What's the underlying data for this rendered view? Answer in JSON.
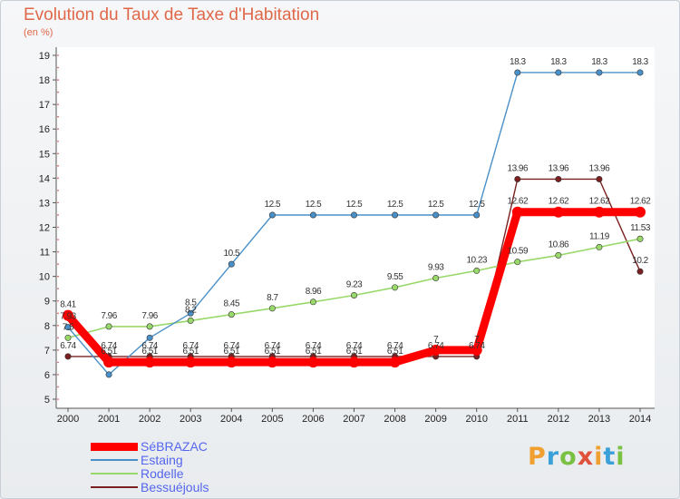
{
  "header": {
    "title": "Evolution du Taux de Taxe d'Habitation",
    "unit": "(en %)"
  },
  "brand": {
    "letters": [
      "P",
      "r",
      "o",
      "x",
      "i",
      "t",
      "i"
    ],
    "colors": [
      "#f0a030",
      "#3aa0d8",
      "#7ac143",
      "#e0503a",
      "#f0a030",
      "#3aa0d8",
      "#7ac143"
    ]
  },
  "chart_data": {
    "type": "line",
    "title": "Evolution du Taux de Taxe d'Habitation",
    "ylabel": "(en %)",
    "x": [
      "2000",
      "2001",
      "2002",
      "2003",
      "2004",
      "2005",
      "2006",
      "2007",
      "2008",
      "2009",
      "2010",
      "2011",
      "2012",
      "2013",
      "2014"
    ],
    "ylim": [
      5,
      19
    ],
    "yticks": [
      5,
      6,
      7,
      8,
      9,
      10,
      11,
      12,
      13,
      14,
      15,
      16,
      17,
      18,
      19
    ],
    "grid": false,
    "legend": "bottom-left",
    "series": [
      {
        "name": "SéBRAZAC",
        "color": "#ff0000",
        "values": [
          8.41,
          6.51,
          6.51,
          6.51,
          6.51,
          6.51,
          6.51,
          6.51,
          6.51,
          7.0,
          7.0,
          12.62,
          12.62,
          12.62,
          12.62
        ],
        "labels": [
          "8.41",
          "6.51",
          "6.51",
          "6.51",
          "6.51",
          "6.51",
          "6.51",
          "6.51",
          "6.51",
          "7",
          "7",
          "12.62",
          "12.62",
          "12.62",
          "12.62"
        ]
      },
      {
        "name": "Estaing",
        "color": "#4a90c8",
        "values": [
          7.93,
          6.0,
          7.5,
          8.5,
          10.5,
          12.5,
          12.5,
          12.5,
          12.5,
          12.5,
          12.5,
          18.3,
          18.3,
          18.3,
          18.3
        ],
        "labels": [
          "7.93",
          "",
          "",
          "8.5",
          "10.5",
          "12.5",
          "12.5",
          "12.5",
          "12.5",
          "12.5",
          "12.5",
          "18.3",
          "18.3",
          "18.3",
          "18.3"
        ]
      },
      {
        "name": "Rodelle",
        "color": "#99d86a",
        "values": [
          7.5,
          7.96,
          7.96,
          8.2,
          8.45,
          8.7,
          8.96,
          9.23,
          9.55,
          9.93,
          10.23,
          10.59,
          10.86,
          11.19,
          11.53
        ],
        "labels": [
          "7.5",
          "7.96",
          "7.96",
          "8.2",
          "8.45",
          "8.7",
          "8.96",
          "9.23",
          "9.55",
          "9.93",
          "10.23",
          "10.59",
          "10.86",
          "11.19",
          "11.53"
        ]
      },
      {
        "name": "Bessuéjouls",
        "color": "#7a2020",
        "values": [
          6.74,
          6.74,
          6.74,
          6.74,
          6.74,
          6.74,
          6.74,
          6.74,
          6.74,
          6.74,
          6.74,
          13.96,
          13.96,
          13.96,
          10.2
        ],
        "labels": [
          "6.74",
          "6.74",
          "6.74",
          "6.74",
          "6.74",
          "6.74",
          "6.74",
          "6.74",
          "6.74",
          "6.74",
          "6.74",
          "13.96",
          "13.96",
          "13.96",
          "10.2"
        ]
      }
    ]
  }
}
